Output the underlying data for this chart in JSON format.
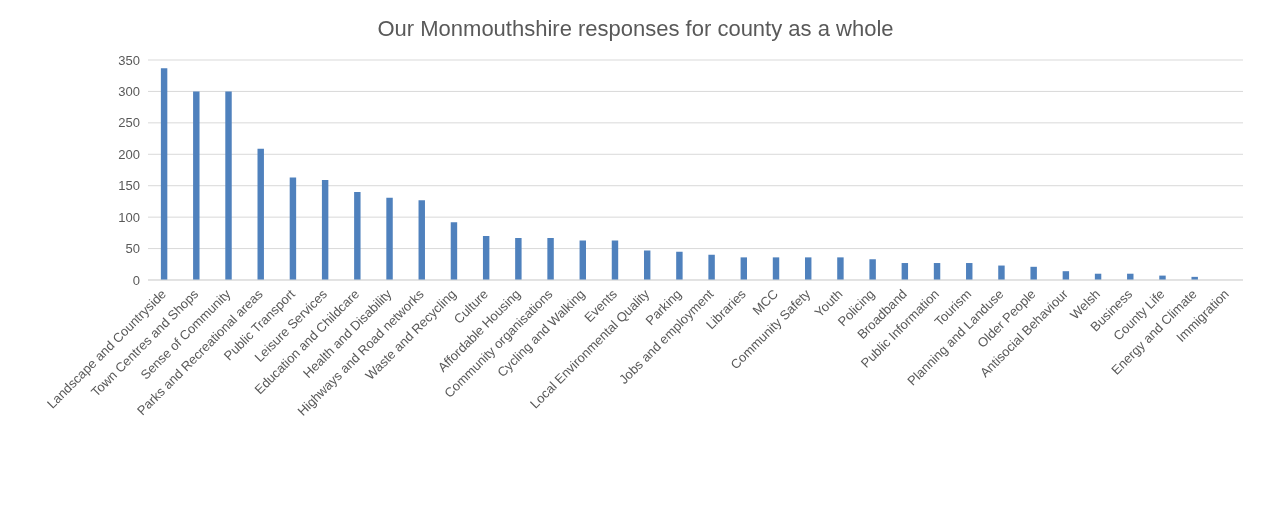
{
  "chart_data": {
    "type": "bar",
    "title": "Our Monmouthshire responses for county as a whole",
    "categories": [
      "Landscape and Countryside",
      "Town Centres and Shops",
      "Sense of Community",
      "Parks and Recreational areas",
      "Public Transport",
      "Leisure Services",
      "Education and Childcare",
      "Health and Disability",
      "Highways and Road networks",
      "Waste and Recycling",
      "Culture",
      "Affordable Housing",
      "Community organisations",
      "Cycling and Walking",
      "Events",
      "Local Environmental Quality",
      "Parking",
      "Jobs and employment",
      "Libraries",
      "MCC",
      "Community Safety",
      "Youth",
      "Policing",
      "Broadband",
      "Public Information",
      "Tourism",
      "Planning and Landuse",
      "Older People",
      "Antisocial Behaviour",
      "Welsh",
      "Business",
      "County Life",
      "Energy and Climate",
      "Immigration"
    ],
    "values": [
      337,
      300,
      300,
      209,
      163,
      159,
      140,
      131,
      127,
      92,
      70,
      67,
      67,
      63,
      63,
      47,
      45,
      40,
      36,
      36,
      36,
      36,
      33,
      27,
      27,
      27,
      23,
      21,
      14,
      10,
      10,
      7,
      5,
      0
    ],
    "color": "#4f81bd",
    "ylim": [
      0,
      350
    ],
    "yticks": [
      0,
      50,
      100,
      150,
      200,
      250,
      300,
      350
    ],
    "grid": "y"
  }
}
